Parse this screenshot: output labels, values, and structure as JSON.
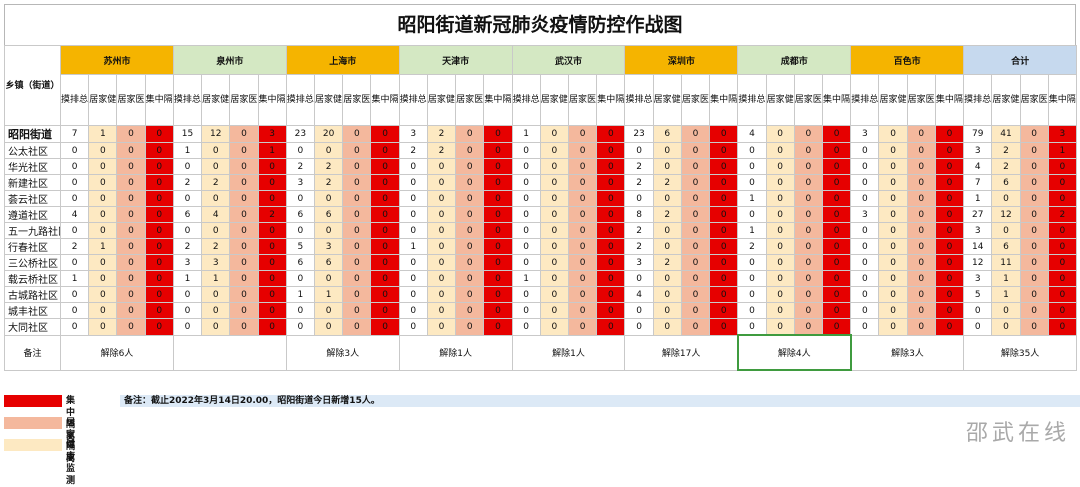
{
  "title": "昭阳街道新冠肺炎疫情防控作战图",
  "corner_label": "乡镇（街道）",
  "sub_headers": [
    "摸排总数",
    "居家健康监测",
    "居家医学观察",
    "集中隔离"
  ],
  "cities": [
    {
      "name": "苏州市",
      "color": "#f5b400"
    },
    {
      "name": "泉州市",
      "color": "#d4e8c3"
    },
    {
      "name": "上海市",
      "color": "#f5b400"
    },
    {
      "name": "天津市",
      "color": "#d4e8c3"
    },
    {
      "name": "武汉市",
      "color": "#d4e8c3"
    },
    {
      "name": "深圳市",
      "color": "#f5b400"
    },
    {
      "name": "成都市",
      "color": "#d4e8c3"
    },
    {
      "name": "百色市",
      "color": "#f5b400"
    },
    {
      "name": "合计",
      "color": "#c6d9ee"
    }
  ],
  "cell_colors": {
    "total": "#ffffff",
    "health_monitor": "#fde9c2",
    "medical_obs": "#f4b89d",
    "centralized": "#e60000",
    "row_band": "#fdf6e6"
  },
  "rows": [
    {
      "name": "昭阳街道",
      "values": [
        "7",
        "1",
        "0",
        "0",
        "15",
        "12",
        "0",
        "3",
        "23",
        "20",
        "0",
        "0",
        "3",
        "2",
        "0",
        "0",
        "1",
        "0",
        "0",
        "0",
        "23",
        "6",
        "0",
        "0",
        "4",
        "0",
        "0",
        "0",
        "3",
        "0",
        "0",
        "0",
        "79",
        "41",
        "0",
        "3"
      ]
    },
    {
      "name": "公太社区",
      "values": [
        "0",
        "0",
        "0",
        "0",
        "1",
        "0",
        "0",
        "1",
        "0",
        "0",
        "0",
        "0",
        "2",
        "2",
        "0",
        "0",
        "0",
        "0",
        "0",
        "0",
        "0",
        "0",
        "0",
        "0",
        "0",
        "0",
        "0",
        "0",
        "0",
        "0",
        "0",
        "0",
        "3",
        "2",
        "0",
        "1"
      ]
    },
    {
      "name": "华光社区",
      "values": [
        "0",
        "0",
        "0",
        "0",
        "0",
        "0",
        "0",
        "0",
        "2",
        "2",
        "0",
        "0",
        "0",
        "0",
        "0",
        "0",
        "0",
        "0",
        "0",
        "0",
        "2",
        "0",
        "0",
        "0",
        "0",
        "0",
        "0",
        "0",
        "0",
        "0",
        "0",
        "0",
        "4",
        "2",
        "0",
        "0"
      ]
    },
    {
      "name": "新建社区",
      "values": [
        "0",
        "0",
        "0",
        "0",
        "2",
        "2",
        "0",
        "0",
        "3",
        "2",
        "0",
        "0",
        "0",
        "0",
        "0",
        "0",
        "0",
        "0",
        "0",
        "0",
        "2",
        "2",
        "0",
        "0",
        "0",
        "0",
        "0",
        "0",
        "0",
        "0",
        "0",
        "0",
        "7",
        "6",
        "0",
        "0"
      ]
    },
    {
      "name": "荟云社区",
      "values": [
        "0",
        "0",
        "0",
        "0",
        "0",
        "0",
        "0",
        "0",
        "0",
        "0",
        "0",
        "0",
        "0",
        "0",
        "0",
        "0",
        "0",
        "0",
        "0",
        "0",
        "0",
        "0",
        "0",
        "0",
        "1",
        "0",
        "0",
        "0",
        "0",
        "0",
        "0",
        "0",
        "1",
        "0",
        "0",
        "0"
      ]
    },
    {
      "name": "遵道社区",
      "values": [
        "4",
        "0",
        "0",
        "0",
        "6",
        "4",
        "0",
        "2",
        "6",
        "6",
        "0",
        "0",
        "0",
        "0",
        "0",
        "0",
        "0",
        "0",
        "0",
        "0",
        "8",
        "2",
        "0",
        "0",
        "0",
        "0",
        "0",
        "0",
        "3",
        "0",
        "0",
        "0",
        "27",
        "12",
        "0",
        "2"
      ]
    },
    {
      "name": "五一九路社区",
      "values": [
        "0",
        "0",
        "0",
        "0",
        "0",
        "0",
        "0",
        "0",
        "0",
        "0",
        "0",
        "0",
        "0",
        "0",
        "0",
        "0",
        "0",
        "0",
        "0",
        "0",
        "2",
        "0",
        "0",
        "0",
        "1",
        "0",
        "0",
        "0",
        "0",
        "0",
        "0",
        "0",
        "3",
        "0",
        "0",
        "0"
      ]
    },
    {
      "name": "行春社区",
      "values": [
        "2",
        "1",
        "0",
        "0",
        "2",
        "2",
        "0",
        "0",
        "5",
        "3",
        "0",
        "0",
        "1",
        "0",
        "0",
        "0",
        "0",
        "0",
        "0",
        "0",
        "2",
        "0",
        "0",
        "0",
        "2",
        "0",
        "0",
        "0",
        "0",
        "0",
        "0",
        "0",
        "14",
        "6",
        "0",
        "0"
      ]
    },
    {
      "name": "三公桥社区",
      "values": [
        "0",
        "0",
        "0",
        "0",
        "3",
        "3",
        "0",
        "0",
        "6",
        "6",
        "0",
        "0",
        "0",
        "0",
        "0",
        "0",
        "0",
        "0",
        "0",
        "0",
        "3",
        "2",
        "0",
        "0",
        "0",
        "0",
        "0",
        "0",
        "0",
        "0",
        "0",
        "0",
        "12",
        "11",
        "0",
        "0"
      ]
    },
    {
      "name": "载云桥社区",
      "values": [
        "1",
        "0",
        "0",
        "0",
        "1",
        "1",
        "0",
        "0",
        "0",
        "0",
        "0",
        "0",
        "0",
        "0",
        "0",
        "0",
        "1",
        "0",
        "0",
        "0",
        "0",
        "0",
        "0",
        "0",
        "0",
        "0",
        "0",
        "0",
        "0",
        "0",
        "0",
        "0",
        "3",
        "1",
        "0",
        "0"
      ]
    },
    {
      "name": "古城路社区",
      "values": [
        "0",
        "0",
        "0",
        "0",
        "0",
        "0",
        "0",
        "0",
        "1",
        "1",
        "0",
        "0",
        "0",
        "0",
        "0",
        "0",
        "0",
        "0",
        "0",
        "0",
        "4",
        "0",
        "0",
        "0",
        "0",
        "0",
        "0",
        "0",
        "0",
        "0",
        "0",
        "0",
        "5",
        "1",
        "0",
        "0"
      ]
    },
    {
      "name": "城丰社区",
      "values": [
        "0",
        "0",
        "0",
        "0",
        "0",
        "0",
        "0",
        "0",
        "0",
        "0",
        "0",
        "0",
        "0",
        "0",
        "0",
        "0",
        "0",
        "0",
        "0",
        "0",
        "0",
        "0",
        "0",
        "0",
        "0",
        "0",
        "0",
        "0",
        "0",
        "0",
        "0",
        "0",
        "0",
        "0",
        "0",
        "0"
      ]
    },
    {
      "name": "大同社区",
      "values": [
        "0",
        "0",
        "0",
        "0",
        "0",
        "0",
        "0",
        "0",
        "0",
        "0",
        "0",
        "0",
        "0",
        "0",
        "0",
        "0",
        "0",
        "0",
        "0",
        "0",
        "0",
        "0",
        "0",
        "0",
        "0",
        "0",
        "0",
        "0",
        "0",
        "0",
        "0",
        "0",
        "0",
        "0",
        "0",
        "0"
      ]
    }
  ],
  "notes_label": "备注",
  "notes": [
    "解除6人",
    "",
    "解除3人",
    "解除1人",
    "解除1人",
    "解除17人",
    "解除4人",
    "解除3人",
    "解除35人"
  ],
  "legend": [
    {
      "label": "集中隔离",
      "color": "#e60000"
    },
    {
      "label": "居家隔离",
      "color": "#f4b89d"
    },
    {
      "label": "健康监测",
      "color": "#fde9c2"
    }
  ],
  "remark": "备注：截止2022年3月14日20.00，昭阳街道今日新增15人。",
  "watermark": "邵武在线"
}
